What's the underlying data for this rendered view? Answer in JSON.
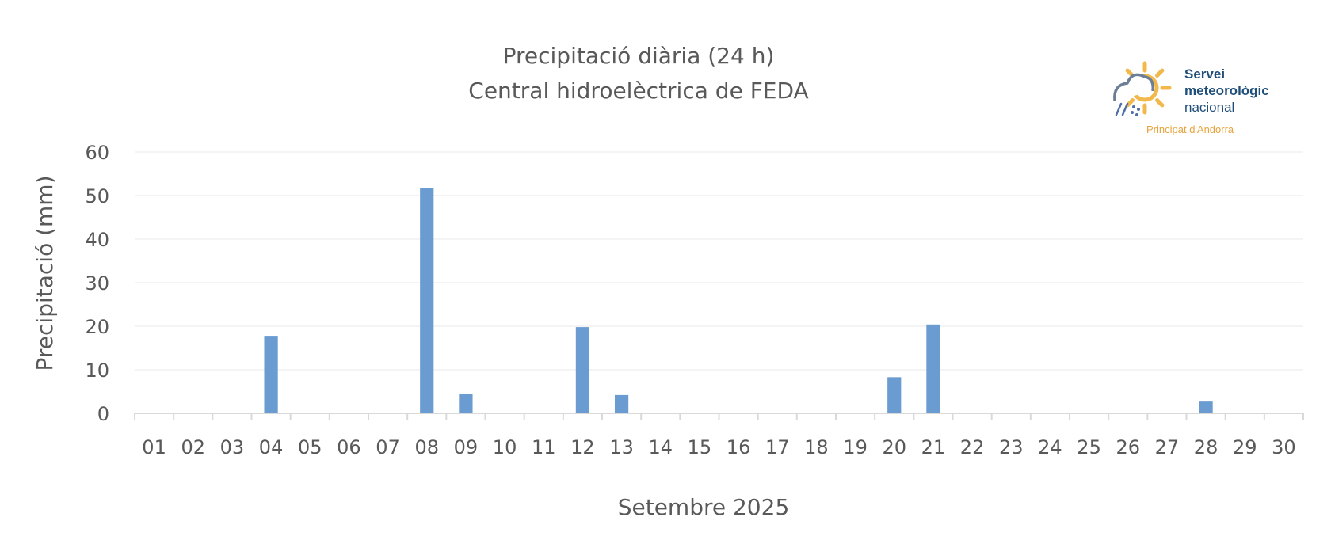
{
  "logo": {
    "line1": "Servei",
    "line2": "meteorològic",
    "line3": "nacional",
    "subline": "Principat d'Andorra",
    "text_color": "#1f4e79",
    "sub_color": "#e8a33a",
    "sun_color": "#f2b84b",
    "cloud_color": "#6d7f96"
  },
  "chart_data": {
    "type": "bar",
    "title": "Precipitació diària (24 h)",
    "subtitle": "Central hidroelèctrica de FEDA",
    "xlabel": "Setembre 2025",
    "ylabel": "Precipitació (mm)",
    "ylim": [
      0,
      60
    ],
    "yticks": [
      "0",
      "10",
      "20",
      "30",
      "40",
      "50",
      "60"
    ],
    "grid": true,
    "bar_color": "#6a9bd1",
    "categories": [
      "01",
      "02",
      "03",
      "04",
      "05",
      "06",
      "07",
      "08",
      "09",
      "10",
      "11",
      "12",
      "13",
      "14",
      "15",
      "16",
      "17",
      "18",
      "19",
      "20",
      "21",
      "22",
      "23",
      "24",
      "25",
      "26",
      "27",
      "28",
      "29",
      "30"
    ],
    "values": [
      0,
      0,
      0,
      17.8,
      0,
      0,
      0,
      51.7,
      4.5,
      0,
      0,
      19.8,
      4.2,
      0,
      0,
      0,
      0,
      0,
      0,
      8.3,
      20.4,
      0,
      0,
      0,
      0,
      0,
      0,
      2.7,
      0,
      0
    ]
  }
}
